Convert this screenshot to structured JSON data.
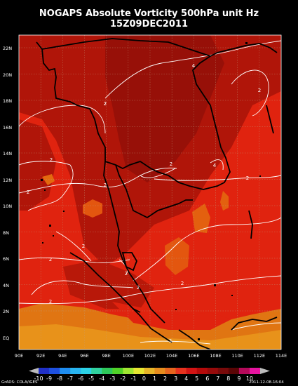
{
  "title": "NOGAPS Absolute Vorticity 500hPa unit Hz",
  "subtitle": "15Z09DEC2011",
  "lat_labels": [
    "22N",
    "20N",
    "18N",
    "16N",
    "14N",
    "12N",
    "10N",
    "8N",
    "6N",
    "4N",
    "2N",
    "EQ"
  ],
  "lon_labels": [
    "90E",
    "92E",
    "94E",
    "96E",
    "98E",
    "100E",
    "102E",
    "104E",
    "106E",
    "108E",
    "110E",
    "112E",
    "114E"
  ],
  "colorbar_labels": [
    "-10",
    "-9",
    "-8",
    "-7",
    "-6",
    "-5",
    "-4",
    "-3",
    "-2",
    "-1",
    "0",
    "1",
    "2",
    "3",
    "4",
    "5",
    "6",
    "7",
    "8",
    "9",
    "10"
  ],
  "colorbar_colors": [
    "#2030c8",
    "#1e50e0",
    "#1e8cf0",
    "#28b4f0",
    "#2cd2e6",
    "#30d2a0",
    "#2ec85a",
    "#50d228",
    "#a0e632",
    "#e6e632",
    "#e6b428",
    "#e68c1e",
    "#e6641e",
    "#e6321e",
    "#d21414",
    "#b40a0a",
    "#960a0a",
    "#780a0a",
    "#5a0505",
    "#b40a5a",
    "#e614a0"
  ],
  "contour_labels": [
    "2",
    "2",
    "2",
    "4",
    "2",
    "2",
    "2",
    "4",
    "2",
    "2",
    "2",
    "2",
    "2",
    "2",
    "2",
    "2",
    "2",
    "2",
    "0",
    "2",
    "4",
    "2"
  ],
  "credit_left": "GrADS: COLA/IGES",
  "credit_right": "2011-12-08-16:04",
  "colors": {
    "background": "#000000",
    "field_base": "#e0230f",
    "field_dark": "#a3120a",
    "field_orange": "#e3780f",
    "contour": "#ffffff",
    "coast": "#000000"
  }
}
